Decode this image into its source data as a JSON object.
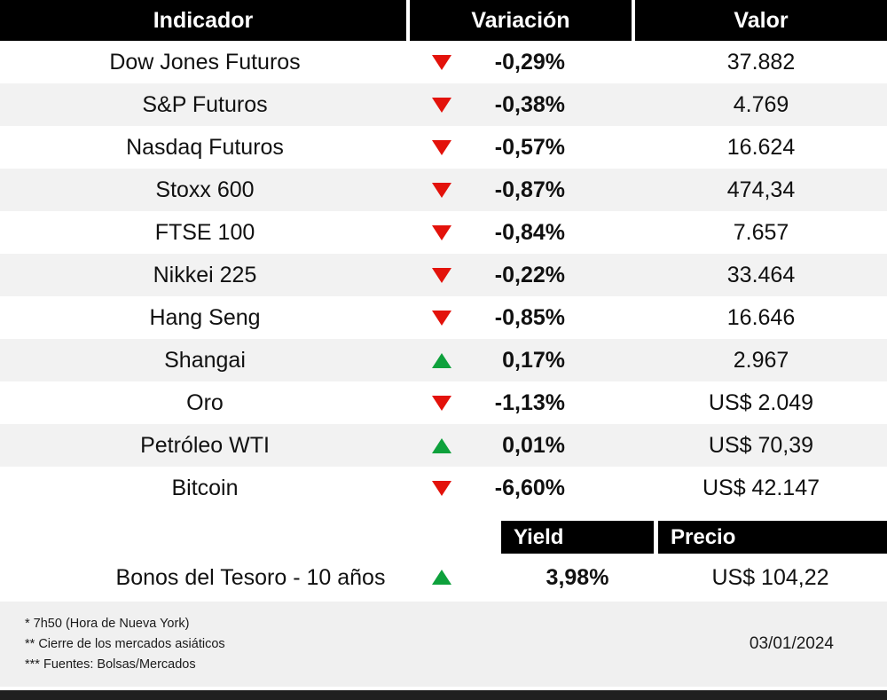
{
  "chart_data": {
    "type": "table",
    "columns": [
      "Indicador",
      "Variación",
      "Valor"
    ],
    "rows": [
      {
        "indicator": "Dow Jones Futuros",
        "direction": "down",
        "variation": "-0,29%",
        "value": "37.882"
      },
      {
        "indicator": "S&P Futuros",
        "direction": "down",
        "variation": "-0,38%",
        "value": "4.769"
      },
      {
        "indicator": "Nasdaq Futuros",
        "direction": "down",
        "variation": "-0,57%",
        "value": "16.624"
      },
      {
        "indicator": "Stoxx 600",
        "direction": "down",
        "variation": "-0,87%",
        "value": "474,34"
      },
      {
        "indicator": "FTSE 100",
        "direction": "down",
        "variation": "-0,84%",
        "value": "7.657"
      },
      {
        "indicator": "Nikkei 225",
        "direction": "down",
        "variation": "-0,22%",
        "value": "33.464"
      },
      {
        "indicator": "Hang Seng",
        "direction": "down",
        "variation": "-0,85%",
        "value": "16.646"
      },
      {
        "indicator": "Shangai",
        "direction": "up",
        "variation": "0,17%",
        "value": "2.967"
      },
      {
        "indicator": "Oro",
        "direction": "down",
        "variation": "-1,13%",
        "value": "US$ 2.049"
      },
      {
        "indicator": "Petróleo WTI",
        "direction": "up",
        "variation": "0,01%",
        "value": "US$ 70,39"
      },
      {
        "indicator": "Bitcoin",
        "direction": "down",
        "variation": "-6,60%",
        "value": "US$ 42.147"
      }
    ],
    "bond_section": {
      "columns": [
        "Yield",
        "Precio"
      ],
      "row": {
        "indicator": "Bonos del Tesoro - 10 años",
        "direction": "up",
        "yield": "3,98%",
        "price": "US$ 104,22"
      }
    },
    "footnotes": [
      "* 7h50 (Hora de Nueva York)",
      "** Cierre de los mercados asiáticos",
      "*** Fuentes:  Bolsas/Mercados"
    ],
    "date": "03/01/2024"
  },
  "colors": {
    "down_red": "#e3120b",
    "up_green": "#0ea13c",
    "header_bg": "#000000",
    "row_alt_bg": "#f2f2f2",
    "footer_bg": "#f0f0f0",
    "bottom_bar": "#202020"
  }
}
